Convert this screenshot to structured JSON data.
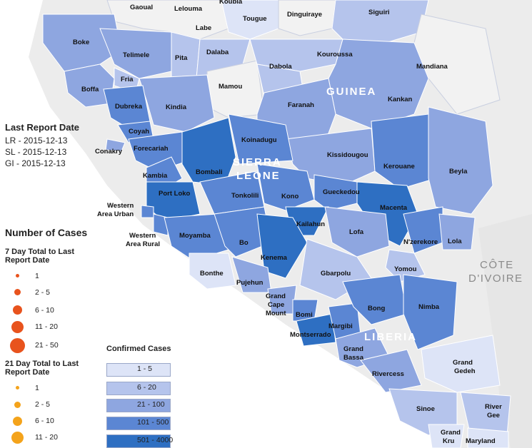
{
  "colors": {
    "class_1_5": "#dde4f7",
    "class_6_20": "#b5c4ec",
    "class_21_100": "#8ea6e0",
    "class_101_500": "#5b86d3",
    "class_501_4000": "#2e6fc2",
    "no_data": "#f2f2f2",
    "seven_day_dot": "#e8531d",
    "twentyone_day_dot": "#f4a31b"
  },
  "countries": {
    "guinea": "GUINEA",
    "sierra_leone_1": "SIERRA",
    "sierra_leone_2": "LEONE",
    "liberia": "LIBERIA",
    "cote_1": "CÔTE",
    "cote_2": "D'IVOIRE"
  },
  "regions": {
    "gaoual": "Gaoual",
    "lelouma": "Lelouma",
    "koubia": "Koubia",
    "tougue": "Tougue",
    "dinguiraye": "Dinguiraye",
    "siguiri": "Siguiri",
    "labe": "Labe",
    "boke": "Boke",
    "telimele": "Telimele",
    "pita": "Pita",
    "dalaba": "Dalaba",
    "kouroussa": "Kouroussa",
    "dabola": "Dabola",
    "mandiana": "Mandiana",
    "boffa": "Boffa",
    "fria": "Fria",
    "mamou": "Mamou",
    "kankan": "Kankan",
    "dubreka": "Dubreka",
    "kindia": "Kindia",
    "faranah": "Faranah",
    "coyah": "Coyah",
    "conakry": "Conakry",
    "forecariah": "Forecariah",
    "koinadugu": "Koinadugu",
    "kissidougou": "Kissidougou",
    "kerouane": "Kerouane",
    "beyla": "Beyla",
    "kambia": "Kambia",
    "bombali": "Bombali",
    "port_loko": "Port Loko",
    "tonkolili": "Tonkolili",
    "kono": "Kono",
    "gueckedou": "Gueckedou",
    "macenta": "Macenta",
    "western_urban_1": "Western",
    "western_urban_2": "Area Urban",
    "kailahun": "Kailahun",
    "lofa": "Lofa",
    "western_rural_1": "Western",
    "western_rural_2": "Area Rural",
    "moyamba": "Moyamba",
    "bo": "Bo",
    "kenema": "Kenema",
    "nzerekore": "N'zerekore",
    "lola": "Lola",
    "yomou": "Yomou",
    "gbarpolu": "Gbarpolu",
    "bonthe": "Bonthe",
    "pujehun": "Pujehun",
    "gcm_1": "Grand",
    "gcm_2": "Cape",
    "gcm_3": "Mount",
    "bomi": "Bomi",
    "bong": "Bong",
    "nimba": "Nimba",
    "margibi": "Margibi",
    "montserrado": "Montserrado",
    "grand_bassa_1": "Grand",
    "grand_bassa_2": "Bassa",
    "rivercess": "Rivercess",
    "grand_gedeh_1": "Grand",
    "grand_gedeh_2": "Gedeh",
    "sinoe": "Sinoe",
    "river_gee_1": "River",
    "river_gee_2": "Gee",
    "grand_kru_1": "Grand",
    "grand_kru_2": "Kru",
    "maryland": "Maryland"
  },
  "report": {
    "title": "Last Report Date",
    "lr": "LR - 2015-12-13",
    "sl": "SL - 2015-12-13",
    "gi": "GI - 2015-12-13"
  },
  "legend": {
    "title": "Number of Cases",
    "seven_day_title_1": "7 Day Total to Last",
    "seven_day_title_2": "Report Date",
    "seven_day_items": [
      "1",
      "2 - 5",
      "6 - 10",
      "11 - 20",
      "21 - 50"
    ],
    "twentyone_title_1": "21 Day Total to Last",
    "twentyone_title_2": "Report Date",
    "twentyone_items": [
      "1",
      "2 - 5",
      "6 - 10",
      "11 - 20"
    ],
    "confirmed_title": "Confirmed Cases",
    "confirmed_items": [
      "1 - 5",
      "6 - 20",
      "21 - 100",
      "101 - 500",
      "501 - 4000"
    ]
  }
}
